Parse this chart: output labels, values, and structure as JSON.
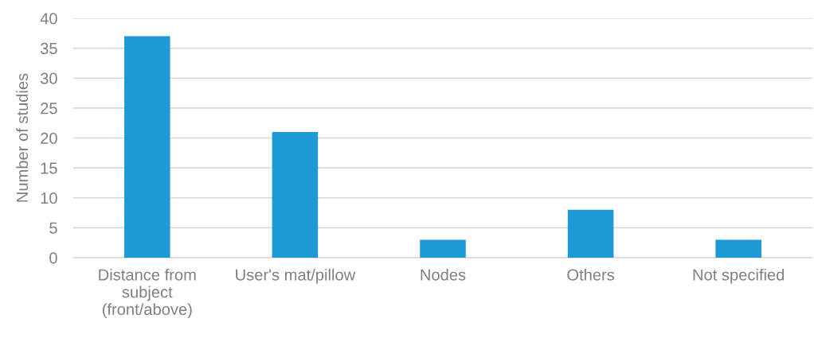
{
  "chart_data": {
    "type": "bar",
    "ylabel": "Number of studies",
    "categories": [
      "Distance from subject (front/above)",
      "User's mat/pillow",
      "Nodes",
      "Others",
      "Not specified"
    ],
    "values": [
      37,
      21,
      3,
      8,
      3
    ],
    "color": "#1b9ad6",
    "ylim": [
      0,
      40
    ],
    "yticks": [
      0,
      5,
      10,
      15,
      20,
      25,
      30,
      35,
      40
    ],
    "grid": "y",
    "legend": false
  }
}
